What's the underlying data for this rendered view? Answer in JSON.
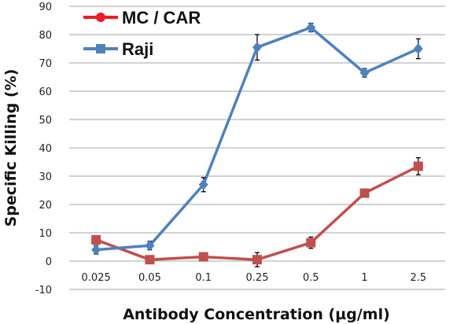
{
  "chart_data": {
    "type": "line",
    "title": "",
    "xlabel": "Antibody Concentration (µg/ml)",
    "ylabel": "Specific Killing  (%)",
    "categories": [
      "0.025",
      "0.05",
      "0.1",
      "0.25",
      "0.5",
      "1",
      "2.5"
    ],
    "ylim": [
      -10,
      90
    ],
    "yticks": [
      -10,
      0,
      10,
      20,
      30,
      40,
      50,
      60,
      70,
      80,
      90
    ],
    "grid": true,
    "legend_position": "top-left",
    "series": [
      {
        "name": "MC / CAR",
        "legend_color": "#ee1c24",
        "color": "#c0504d",
        "marker": "square",
        "values": [
          7.5,
          0.5,
          1.5,
          0.5,
          6.5,
          24,
          33.5
        ],
        "errors": [
          1.0,
          0.5,
          0.5,
          2.5,
          2.0,
          1.0,
          3.0
        ]
      },
      {
        "name": "Raji",
        "legend_color": "#4f81bd",
        "color": "#4f81bd",
        "marker": "diamond",
        "values": [
          4,
          5.5,
          27,
          75.5,
          82.5,
          66.5,
          75
        ],
        "errors": [
          1.5,
          1.5,
          2.5,
          4.5,
          1.5,
          1.5,
          3.5
        ]
      }
    ]
  }
}
